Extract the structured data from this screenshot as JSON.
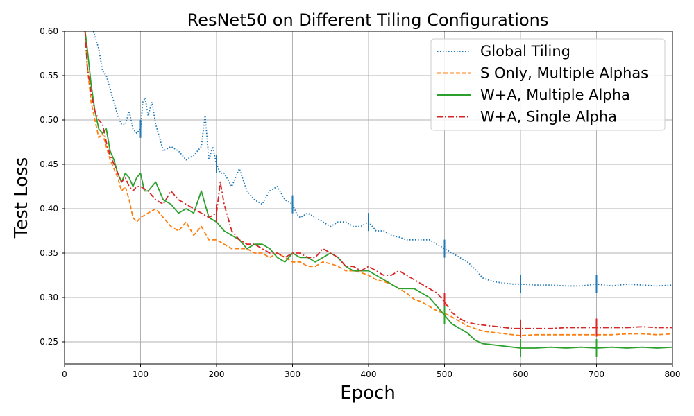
{
  "chart_data": {
    "type": "line",
    "title": "ResNet50 on Different Tiling Configurations",
    "xlabel": "Epoch",
    "ylabel": "Test Loss",
    "xlim": [
      0,
      800
    ],
    "ylim": [
      0.225,
      0.6
    ],
    "xticks": [
      0,
      100,
      200,
      300,
      400,
      500,
      600,
      700,
      800
    ],
    "xtick_labels": [
      "0",
      "100",
      "200",
      "300",
      "400",
      "500",
      "600",
      "700",
      "800"
    ],
    "yticks": [
      0.25,
      0.3,
      0.35,
      0.4,
      0.45,
      0.5,
      0.55,
      0.6
    ],
    "ytick_labels": [
      "0.25",
      "0.30",
      "0.35",
      "0.40",
      "0.45",
      "0.50",
      "0.55",
      "0.60"
    ],
    "grid": true,
    "legend_position": "top-right",
    "series": [
      {
        "name": "Global Tiling",
        "color": "#1f77b4",
        "style": "dotted",
        "x": [
          38,
          45,
          50,
          55,
          60,
          65,
          70,
          75,
          80,
          85,
          90,
          95,
          100,
          103,
          106,
          110,
          115,
          120,
          125,
          130,
          140,
          150,
          160,
          170,
          180,
          185,
          190,
          195,
          200,
          205,
          210,
          220,
          230,
          240,
          250,
          260,
          270,
          280,
          290,
          300,
          305,
          310,
          320,
          330,
          340,
          350,
          360,
          370,
          380,
          390,
          400,
          410,
          420,
          430,
          440,
          450,
          460,
          470,
          480,
          490,
          500,
          510,
          520,
          530,
          540,
          550,
          560,
          570,
          580,
          590,
          600,
          620,
          640,
          660,
          680,
          700,
          720,
          740,
          760,
          780,
          800
        ],
        "values": [
          0.6,
          0.58,
          0.555,
          0.55,
          0.535,
          0.52,
          0.505,
          0.495,
          0.495,
          0.51,
          0.49,
          0.485,
          0.49,
          0.52,
          0.525,
          0.505,
          0.52,
          0.495,
          0.48,
          0.465,
          0.47,
          0.465,
          0.455,
          0.46,
          0.47,
          0.505,
          0.455,
          0.47,
          0.45,
          0.44,
          0.44,
          0.425,
          0.445,
          0.42,
          0.41,
          0.405,
          0.42,
          0.425,
          0.41,
          0.405,
          0.395,
          0.39,
          0.395,
          0.39,
          0.385,
          0.38,
          0.385,
          0.385,
          0.38,
          0.38,
          0.385,
          0.375,
          0.375,
          0.37,
          0.368,
          0.365,
          0.365,
          0.365,
          0.365,
          0.36,
          0.355,
          0.35,
          0.345,
          0.34,
          0.332,
          0.322,
          0.319,
          0.317,
          0.316,
          0.315,
          0.315,
          0.314,
          0.314,
          0.313,
          0.313,
          0.315,
          0.313,
          0.315,
          0.314,
          0.313,
          0.314
        ]
      },
      {
        "name": "S Only, Multiple Alphas",
        "color": "#ff7f0e",
        "style": "dashed",
        "x": [
          27,
          30,
          35,
          40,
          45,
          50,
          55,
          60,
          65,
          70,
          75,
          80,
          85,
          90,
          95,
          100,
          110,
          120,
          130,
          140,
          150,
          160,
          170,
          180,
          190,
          200,
          210,
          220,
          230,
          240,
          250,
          260,
          270,
          280,
          290,
          300,
          310,
          320,
          330,
          340,
          350,
          360,
          370,
          380,
          390,
          400,
          410,
          420,
          430,
          440,
          450,
          460,
          470,
          480,
          490,
          500,
          510,
          520,
          530,
          540,
          550,
          560,
          570,
          580,
          590,
          600,
          620,
          640,
          660,
          680,
          700,
          720,
          740,
          760,
          780,
          800
        ],
        "values": [
          0.6,
          0.56,
          0.52,
          0.5,
          0.48,
          0.485,
          0.47,
          0.455,
          0.445,
          0.435,
          0.42,
          0.425,
          0.41,
          0.39,
          0.385,
          0.39,
          0.395,
          0.4,
          0.39,
          0.38,
          0.375,
          0.385,
          0.37,
          0.38,
          0.365,
          0.365,
          0.36,
          0.355,
          0.355,
          0.355,
          0.35,
          0.35,
          0.345,
          0.35,
          0.345,
          0.34,
          0.34,
          0.335,
          0.335,
          0.34,
          0.338,
          0.335,
          0.33,
          0.33,
          0.328,
          0.325,
          0.32,
          0.318,
          0.315,
          0.31,
          0.305,
          0.298,
          0.295,
          0.29,
          0.285,
          0.282,
          0.278,
          0.273,
          0.268,
          0.265,
          0.262,
          0.261,
          0.26,
          0.259,
          0.258,
          0.257,
          0.258,
          0.258,
          0.258,
          0.258,
          0.258,
          0.258,
          0.259,
          0.259,
          0.258,
          0.259
        ]
      },
      {
        "name": "W+A, Multiple Alpha",
        "color": "#2ca02c",
        "style": "solid",
        "x": [
          27,
          30,
          35,
          40,
          45,
          50,
          55,
          60,
          65,
          70,
          75,
          80,
          85,
          90,
          95,
          100,
          105,
          110,
          120,
          130,
          140,
          150,
          160,
          170,
          180,
          190,
          200,
          210,
          220,
          230,
          240,
          250,
          260,
          270,
          280,
          290,
          300,
          310,
          320,
          330,
          340,
          350,
          360,
          370,
          380,
          390,
          400,
          410,
          420,
          430,
          440,
          450,
          460,
          470,
          480,
          490,
          500,
          510,
          520,
          530,
          540,
          550,
          560,
          570,
          580,
          590,
          600,
          620,
          640,
          660,
          680,
          700,
          720,
          740,
          760,
          780,
          800
        ],
        "values": [
          0.6,
          0.58,
          0.54,
          0.51,
          0.49,
          0.485,
          0.49,
          0.465,
          0.455,
          0.44,
          0.43,
          0.44,
          0.435,
          0.425,
          0.435,
          0.44,
          0.42,
          0.42,
          0.43,
          0.41,
          0.405,
          0.395,
          0.4,
          0.395,
          0.42,
          0.39,
          0.385,
          0.375,
          0.37,
          0.365,
          0.355,
          0.36,
          0.36,
          0.355,
          0.345,
          0.34,
          0.35,
          0.345,
          0.345,
          0.34,
          0.345,
          0.35,
          0.345,
          0.335,
          0.33,
          0.33,
          0.33,
          0.325,
          0.32,
          0.315,
          0.31,
          0.31,
          0.31,
          0.305,
          0.3,
          0.29,
          0.28,
          0.27,
          0.265,
          0.26,
          0.252,
          0.248,
          0.247,
          0.246,
          0.245,
          0.244,
          0.243,
          0.243,
          0.244,
          0.243,
          0.244,
          0.243,
          0.244,
          0.243,
          0.244,
          0.243,
          0.244
        ]
      },
      {
        "name": "W+A, Single Alpha",
        "color": "#d62728",
        "style": "dashdot",
        "x": [
          27,
          30,
          35,
          40,
          45,
          50,
          55,
          60,
          65,
          70,
          75,
          80,
          85,
          90,
          95,
          100,
          110,
          120,
          130,
          140,
          150,
          160,
          170,
          180,
          190,
          200,
          205,
          210,
          220,
          230,
          240,
          250,
          260,
          270,
          280,
          290,
          300,
          310,
          320,
          330,
          340,
          350,
          360,
          370,
          380,
          390,
          400,
          410,
          420,
          430,
          440,
          450,
          460,
          470,
          480,
          490,
          500,
          510,
          520,
          530,
          540,
          550,
          560,
          570,
          580,
          590,
          600,
          620,
          640,
          660,
          680,
          700,
          720,
          740,
          760,
          780,
          800
        ],
        "values": [
          0.6,
          0.56,
          0.53,
          0.51,
          0.5,
          0.495,
          0.475,
          0.46,
          0.45,
          0.44,
          0.43,
          0.435,
          0.425,
          0.42,
          0.425,
          0.425,
          0.42,
          0.41,
          0.405,
          0.42,
          0.41,
          0.405,
          0.4,
          0.395,
          0.39,
          0.395,
          0.43,
          0.405,
          0.375,
          0.365,
          0.36,
          0.36,
          0.355,
          0.35,
          0.35,
          0.345,
          0.35,
          0.35,
          0.345,
          0.345,
          0.355,
          0.35,
          0.345,
          0.335,
          0.335,
          0.33,
          0.335,
          0.33,
          0.325,
          0.325,
          0.33,
          0.325,
          0.32,
          0.315,
          0.31,
          0.305,
          0.295,
          0.283,
          0.276,
          0.272,
          0.27,
          0.269,
          0.268,
          0.267,
          0.266,
          0.265,
          0.265,
          0.265,
          0.265,
          0.266,
          0.266,
          0.266,
          0.266,
          0.266,
          0.267,
          0.266,
          0.266
        ]
      }
    ],
    "markers": [
      {
        "series": "Global Tiling",
        "x": [
          100,
          200,
          300,
          400,
          500,
          600,
          700
        ]
      },
      {
        "series": "W+A, Single Alpha",
        "x": [
          200,
          500,
          600,
          700
        ]
      },
      {
        "series": "W+A, Multiple Alpha",
        "x": [
          500,
          600,
          700
        ]
      }
    ]
  }
}
